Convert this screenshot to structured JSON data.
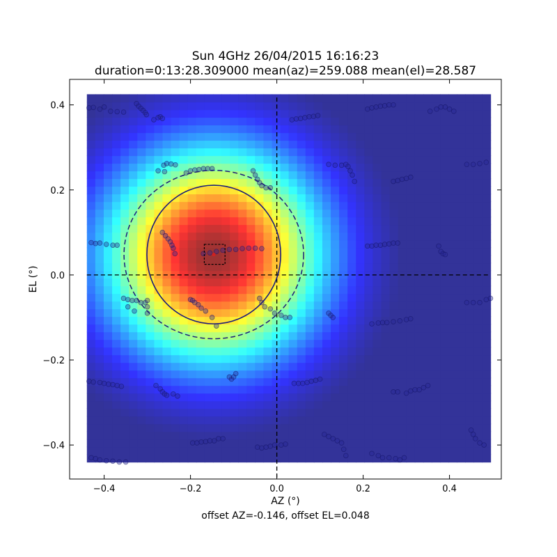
{
  "chart_data": {
    "type": "heatmap",
    "title": "Sun 4GHz 26/04/2015 16:16:23",
    "subtitle": "duration=0:13:28.309000 mean(az)=259.088 mean(el)=28.587",
    "xlabel": "AZ (°)",
    "ylabel": "EL (°)",
    "footer": "offset AZ=-0.146, offset EL=0.048",
    "xlim": [
      -0.48,
      0.52
    ],
    "ylim": [
      -0.48,
      0.46
    ],
    "xticks": [
      -0.4,
      -0.2,
      0.0,
      0.2,
      0.4
    ],
    "xtick_labels": [
      "−0.4",
      "−0.2",
      "0.0",
      "0.2",
      "0.4"
    ],
    "yticks": [
      -0.4,
      -0.2,
      0.0,
      0.2,
      0.4
    ],
    "ytick_labels": [
      "−0.4",
      "−0.2",
      "0.0",
      "0.2",
      "0.4"
    ],
    "grid": false,
    "colormap": "jet",
    "heatmap_extent": {
      "x": [
        -0.44,
        0.495
      ],
      "y": [
        -0.44,
        0.425
      ]
    },
    "beam_center": {
      "az": -0.146,
      "el": 0.048
    },
    "beam_fwhm": {
      "az": 0.42,
      "el": 0.42
    },
    "solid_ellipse": {
      "cx": -0.146,
      "cy": 0.048,
      "rx": 0.155,
      "ry": 0.163
    },
    "dashed_ellipse": {
      "cx": -0.146,
      "cy": 0.048,
      "rx": 0.208,
      "ry": 0.198
    },
    "center_box": {
      "x": [
        -0.168,
        -0.12
      ],
      "y": [
        0.025,
        0.072
      ]
    },
    "crosshair": {
      "x": 0.0,
      "y": 0.0
    },
    "scan_points": [
      [
        -0.435,
        0.393
      ],
      [
        -0.425,
        0.394
      ],
      [
        -0.41,
        0.39
      ],
      [
        -0.4,
        0.395
      ],
      [
        -0.385,
        0.385
      ],
      [
        -0.37,
        0.384
      ],
      [
        -0.355,
        0.383
      ],
      [
        -0.325,
        0.403
      ],
      [
        -0.32,
        0.397
      ],
      [
        -0.315,
        0.392
      ],
      [
        -0.31,
        0.387
      ],
      [
        -0.305,
        0.382
      ],
      [
        -0.302,
        0.377
      ],
      [
        -0.285,
        0.365
      ],
      [
        -0.275,
        0.37
      ],
      [
        -0.27,
        0.372
      ],
      [
        -0.265,
        0.368
      ],
      [
        -0.262,
        0.258
      ],
      [
        -0.255,
        0.262
      ],
      [
        -0.245,
        0.261
      ],
      [
        -0.235,
        0.259
      ],
      [
        -0.275,
        0.245
      ],
      [
        -0.26,
        0.243
      ],
      [
        -0.21,
        0.24
      ],
      [
        -0.2,
        0.245
      ],
      [
        -0.19,
        0.247
      ],
      [
        -0.18,
        0.248
      ],
      [
        -0.17,
        0.25
      ],
      [
        -0.16,
        0.25
      ],
      [
        -0.15,
        0.25
      ],
      [
        -0.265,
        0.1
      ],
      [
        -0.258,
        0.092
      ],
      [
        -0.252,
        0.085
      ],
      [
        -0.247,
        0.078
      ],
      [
        -0.243,
        0.07
      ],
      [
        -0.24,
        0.063
      ],
      [
        -0.236,
        0.05
      ],
      [
        -0.43,
        0.076
      ],
      [
        -0.42,
        0.074
      ],
      [
        -0.41,
        0.075
      ],
      [
        -0.395,
        0.072
      ],
      [
        -0.38,
        0.07
      ],
      [
        -0.37,
        0.07
      ],
      [
        -0.17,
        0.05
      ],
      [
        -0.155,
        0.052
      ],
      [
        -0.14,
        0.055
      ],
      [
        -0.125,
        0.058
      ],
      [
        -0.11,
        0.06
      ],
      [
        -0.095,
        0.06
      ],
      [
        -0.08,
        0.062
      ],
      [
        -0.065,
        0.063
      ],
      [
        -0.05,
        0.063
      ],
      [
        -0.035,
        0.062
      ],
      [
        -0.355,
        -0.055
      ],
      [
        -0.345,
        -0.058
      ],
      [
        -0.335,
        -0.06
      ],
      [
        -0.325,
        -0.06
      ],
      [
        -0.315,
        -0.065
      ],
      [
        -0.305,
        -0.065
      ],
      [
        -0.345,
        -0.075
      ],
      [
        -0.33,
        -0.085
      ],
      [
        -0.3,
        -0.06
      ],
      [
        -0.3,
        -0.075
      ],
      [
        -0.3,
        -0.09
      ],
      [
        -0.2,
        -0.058
      ],
      [
        -0.195,
        -0.06
      ],
      [
        -0.19,
        -0.065
      ],
      [
        -0.182,
        -0.07
      ],
      [
        -0.175,
        -0.078
      ],
      [
        -0.165,
        -0.085
      ],
      [
        -0.15,
        -0.1
      ],
      [
        -0.14,
        -0.12
      ],
      [
        -0.11,
        -0.24
      ],
      [
        -0.105,
        -0.245
      ],
      [
        -0.1,
        -0.24
      ],
      [
        -0.095,
        -0.232
      ],
      [
        -0.435,
        -0.25
      ],
      [
        -0.425,
        -0.252
      ],
      [
        -0.41,
        -0.253
      ],
      [
        -0.4,
        -0.255
      ],
      [
        -0.39,
        -0.257
      ],
      [
        -0.38,
        -0.258
      ],
      [
        -0.37,
        -0.26
      ],
      [
        -0.36,
        -0.262
      ],
      [
        -0.28,
        -0.26
      ],
      [
        -0.27,
        -0.268
      ],
      [
        -0.265,
        -0.275
      ],
      [
        -0.26,
        -0.28
      ],
      [
        -0.255,
        -0.283
      ],
      [
        -0.24,
        -0.28
      ],
      [
        -0.23,
        -0.285
      ],
      [
        -0.43,
        -0.43
      ],
      [
        -0.42,
        -0.432
      ],
      [
        -0.41,
        -0.435
      ],
      [
        -0.395,
        -0.437
      ],
      [
        -0.38,
        -0.438
      ],
      [
        -0.365,
        -0.44
      ],
      [
        -0.35,
        -0.44
      ],
      [
        -0.195,
        -0.395
      ],
      [
        -0.185,
        -0.395
      ],
      [
        -0.175,
        -0.393
      ],
      [
        -0.165,
        -0.392
      ],
      [
        -0.155,
        -0.39
      ],
      [
        -0.145,
        -0.39
      ],
      [
        -0.135,
        -0.385
      ],
      [
        -0.125,
        -0.385
      ],
      [
        -0.045,
        -0.405
      ],
      [
        -0.035,
        -0.407
      ],
      [
        -0.025,
        -0.405
      ],
      [
        -0.015,
        -0.403
      ],
      [
        -0.005,
        -0.4
      ],
      [
        0.01,
        -0.4
      ],
      [
        0.02,
        -0.398
      ],
      [
        -0.055,
        0.245
      ],
      [
        -0.05,
        0.235
      ],
      [
        -0.045,
        0.225
      ],
      [
        -0.04,
        0.217
      ],
      [
        -0.035,
        0.21
      ],
      [
        -0.025,
        0.205
      ],
      [
        -0.015,
        0.205
      ],
      [
        -0.04,
        -0.055
      ],
      [
        -0.035,
        -0.065
      ],
      [
        -0.028,
        -0.075
      ],
      [
        -0.015,
        -0.08
      ],
      [
        -0.005,
        -0.09
      ],
      [
        0.01,
        -0.095
      ],
      [
        0.02,
        -0.1
      ],
      [
        0.03,
        -0.1
      ],
      [
        0.04,
        -0.255
      ],
      [
        0.05,
        -0.255
      ],
      [
        0.06,
        -0.255
      ],
      [
        0.07,
        -0.253
      ],
      [
        0.08,
        -0.25
      ],
      [
        0.09,
        -0.248
      ],
      [
        0.1,
        -0.245
      ],
      [
        0.035,
        0.365
      ],
      [
        0.045,
        0.367
      ],
      [
        0.055,
        0.368
      ],
      [
        0.065,
        0.37
      ],
      [
        0.075,
        0.372
      ],
      [
        0.085,
        0.373
      ],
      [
        0.095,
        0.375
      ],
      [
        0.12,
        0.26
      ],
      [
        0.135,
        0.258
      ],
      [
        0.15,
        0.258
      ],
      [
        0.16,
        0.26
      ],
      [
        0.165,
        0.255
      ],
      [
        0.17,
        0.245
      ],
      [
        0.175,
        0.235
      ],
      [
        0.18,
        0.22
      ],
      [
        0.21,
        0.39
      ],
      [
        0.22,
        0.393
      ],
      [
        0.23,
        0.395
      ],
      [
        0.24,
        0.397
      ],
      [
        0.25,
        0.398
      ],
      [
        0.26,
        0.4
      ],
      [
        0.27,
        0.4
      ],
      [
        0.21,
        0.068
      ],
      [
        0.22,
        0.068
      ],
      [
        0.23,
        0.07
      ],
      [
        0.24,
        0.07
      ],
      [
        0.25,
        0.072
      ],
      [
        0.26,
        0.073
      ],
      [
        0.27,
        0.075
      ],
      [
        0.28,
        0.075
      ],
      [
        0.12,
        -0.09
      ],
      [
        0.125,
        -0.095
      ],
      [
        0.13,
        -0.1
      ],
      [
        0.11,
        -0.375
      ],
      [
        0.12,
        -0.38
      ],
      [
        0.13,
        -0.385
      ],
      [
        0.14,
        -0.39
      ],
      [
        0.15,
        -0.395
      ],
      [
        0.155,
        -0.41
      ],
      [
        0.16,
        -0.425
      ],
      [
        0.22,
        -0.115
      ],
      [
        0.235,
        -0.113
      ],
      [
        0.245,
        -0.112
      ],
      [
        0.255,
        -0.112
      ],
      [
        0.27,
        -0.11
      ],
      [
        0.285,
        -0.108
      ],
      [
        0.3,
        -0.105
      ],
      [
        0.31,
        -0.103
      ],
      [
        0.22,
        -0.42
      ],
      [
        0.235,
        -0.425
      ],
      [
        0.245,
        -0.43
      ],
      [
        0.26,
        -0.43
      ],
      [
        0.275,
        -0.432
      ],
      [
        0.285,
        -0.435
      ],
      [
        0.295,
        -0.43
      ],
      [
        0.27,
        0.22
      ],
      [
        0.28,
        0.222
      ],
      [
        0.29,
        0.225
      ],
      [
        0.3,
        0.227
      ],
      [
        0.31,
        0.23
      ],
      [
        0.27,
        -0.275
      ],
      [
        0.28,
        -0.275
      ],
      [
        0.3,
        -0.278
      ],
      [
        0.31,
        -0.273
      ],
      [
        0.32,
        -0.27
      ],
      [
        0.33,
        -0.27
      ],
      [
        0.34,
        -0.265
      ],
      [
        0.35,
        -0.26
      ],
      [
        0.355,
        0.385
      ],
      [
        0.37,
        0.39
      ],
      [
        0.38,
        0.395
      ],
      [
        0.39,
        0.395
      ],
      [
        0.4,
        0.39
      ],
      [
        0.41,
        0.385
      ],
      [
        0.375,
        0.068
      ],
      [
        0.38,
        0.055
      ],
      [
        0.385,
        0.05
      ],
      [
        0.39,
        0.048
      ],
      [
        0.44,
        0.26
      ],
      [
        0.455,
        0.26
      ],
      [
        0.47,
        0.262
      ],
      [
        0.485,
        0.265
      ],
      [
        0.44,
        -0.065
      ],
      [
        0.455,
        -0.065
      ],
      [
        0.47,
        -0.065
      ],
      [
        0.485,
        -0.058
      ],
      [
        0.495,
        -0.055
      ],
      [
        0.45,
        -0.365
      ],
      [
        0.455,
        -0.375
      ],
      [
        0.46,
        -0.385
      ],
      [
        0.47,
        -0.395
      ],
      [
        0.48,
        -0.4
      ]
    ]
  }
}
